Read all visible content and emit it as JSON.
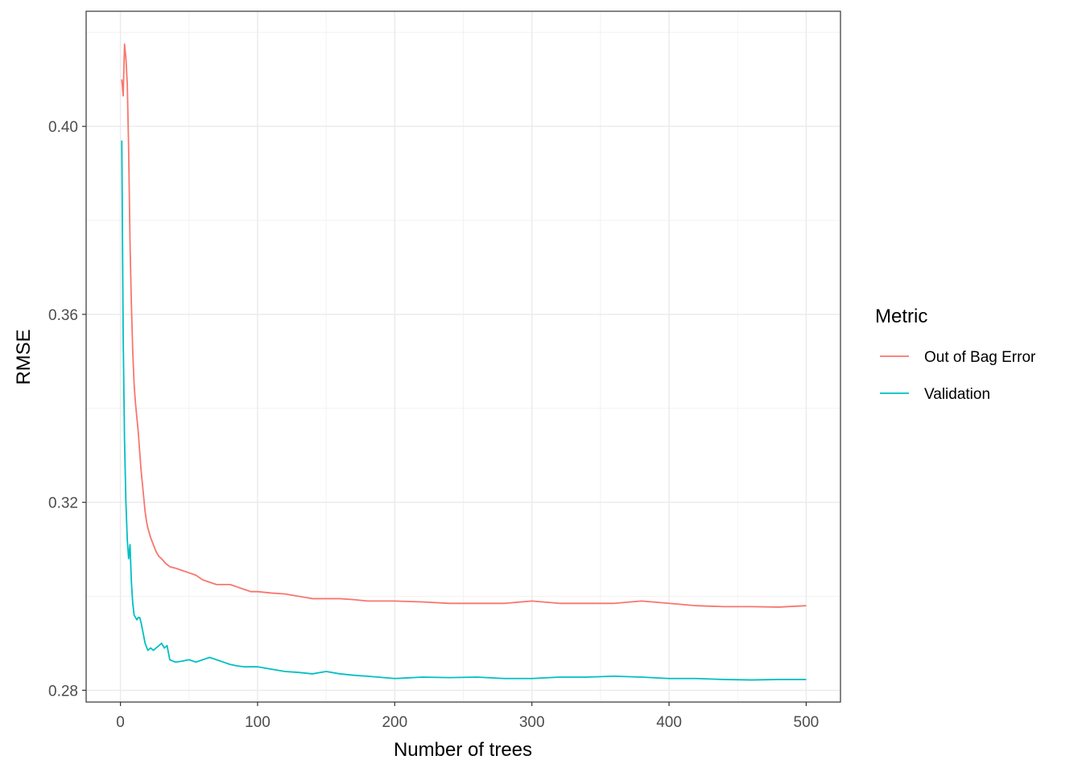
{
  "chart_data": {
    "type": "line",
    "xlabel": "Number of trees",
    "ylabel": "RMSE",
    "xlim": [
      -25,
      525
    ],
    "ylim": [
      0.2775,
      0.4245
    ],
    "x_ticks": [
      0,
      100,
      200,
      300,
      400,
      500
    ],
    "x_tick_labels": [
      "0",
      "100",
      "200",
      "300",
      "400",
      "500"
    ],
    "y_ticks": [
      0.28,
      0.32,
      0.36,
      0.4
    ],
    "y_tick_labels": [
      "0.28",
      "0.32",
      "0.36",
      "0.40"
    ],
    "grid": true,
    "legend": {
      "title": "Metric",
      "position": "right"
    },
    "series": [
      {
        "name": "Out of Bag Error",
        "color": "#F8766D",
        "x": [
          1,
          2,
          3,
          4,
          5,
          6,
          7,
          8,
          9,
          10,
          11,
          12,
          13,
          14,
          15,
          16,
          17,
          18,
          19,
          20,
          22,
          24,
          26,
          28,
          30,
          33,
          36,
          40,
          45,
          50,
          55,
          60,
          65,
          70,
          75,
          80,
          85,
          90,
          95,
          100,
          110,
          120,
          130,
          140,
          150,
          160,
          170,
          180,
          200,
          220,
          240,
          260,
          280,
          300,
          320,
          340,
          360,
          380,
          400,
          420,
          440,
          460,
          480,
          500
        ],
        "y": [
          0.41,
          0.4065,
          0.4175,
          0.4145,
          0.409,
          0.395,
          0.375,
          0.362,
          0.352,
          0.345,
          0.341,
          0.338,
          0.335,
          0.331,
          0.327,
          0.324,
          0.321,
          0.318,
          0.316,
          0.3145,
          0.3125,
          0.311,
          0.3095,
          0.3085,
          0.308,
          0.307,
          0.3063,
          0.306,
          0.3055,
          0.305,
          0.3045,
          0.3035,
          0.303,
          0.3025,
          0.3025,
          0.3025,
          0.302,
          0.3015,
          0.301,
          0.301,
          0.3007,
          0.3005,
          0.3,
          0.2995,
          0.2995,
          0.2995,
          0.2993,
          0.299,
          0.299,
          0.2988,
          0.2985,
          0.2985,
          0.2985,
          0.299,
          0.2985,
          0.2985,
          0.2985,
          0.299,
          0.2985,
          0.298,
          0.2978,
          0.2978,
          0.2977,
          0.298
        ]
      },
      {
        "name": "Validation",
        "color": "#00BFC4",
        "x": [
          1,
          2,
          3,
          4,
          5,
          6,
          7,
          8,
          9,
          10,
          11,
          12,
          13,
          14,
          15,
          16,
          18,
          20,
          22,
          24,
          26,
          28,
          30,
          32,
          34,
          36,
          40,
          45,
          50,
          55,
          60,
          65,
          70,
          75,
          80,
          85,
          90,
          100,
          110,
          120,
          130,
          140,
          150,
          160,
          170,
          180,
          200,
          220,
          240,
          260,
          280,
          300,
          320,
          340,
          360,
          380,
          400,
          420,
          440,
          460,
          480,
          500
        ],
        "y": [
          0.397,
          0.3555,
          0.333,
          0.32,
          0.312,
          0.308,
          0.311,
          0.303,
          0.2985,
          0.296,
          0.2955,
          0.295,
          0.2955,
          0.2955,
          0.2945,
          0.293,
          0.29,
          0.2885,
          0.289,
          0.2885,
          0.289,
          0.2895,
          0.29,
          0.289,
          0.2895,
          0.2865,
          0.286,
          0.2862,
          0.2865,
          0.286,
          0.2865,
          0.287,
          0.2865,
          0.286,
          0.2855,
          0.2852,
          0.285,
          0.285,
          0.2845,
          0.284,
          0.2838,
          0.2835,
          0.284,
          0.2835,
          0.2832,
          0.283,
          0.2825,
          0.2828,
          0.2827,
          0.2828,
          0.2825,
          0.2825,
          0.2828,
          0.2828,
          0.283,
          0.2828,
          0.2825,
          0.2825,
          0.2823,
          0.2822,
          0.2823,
          0.2823
        ]
      }
    ]
  }
}
